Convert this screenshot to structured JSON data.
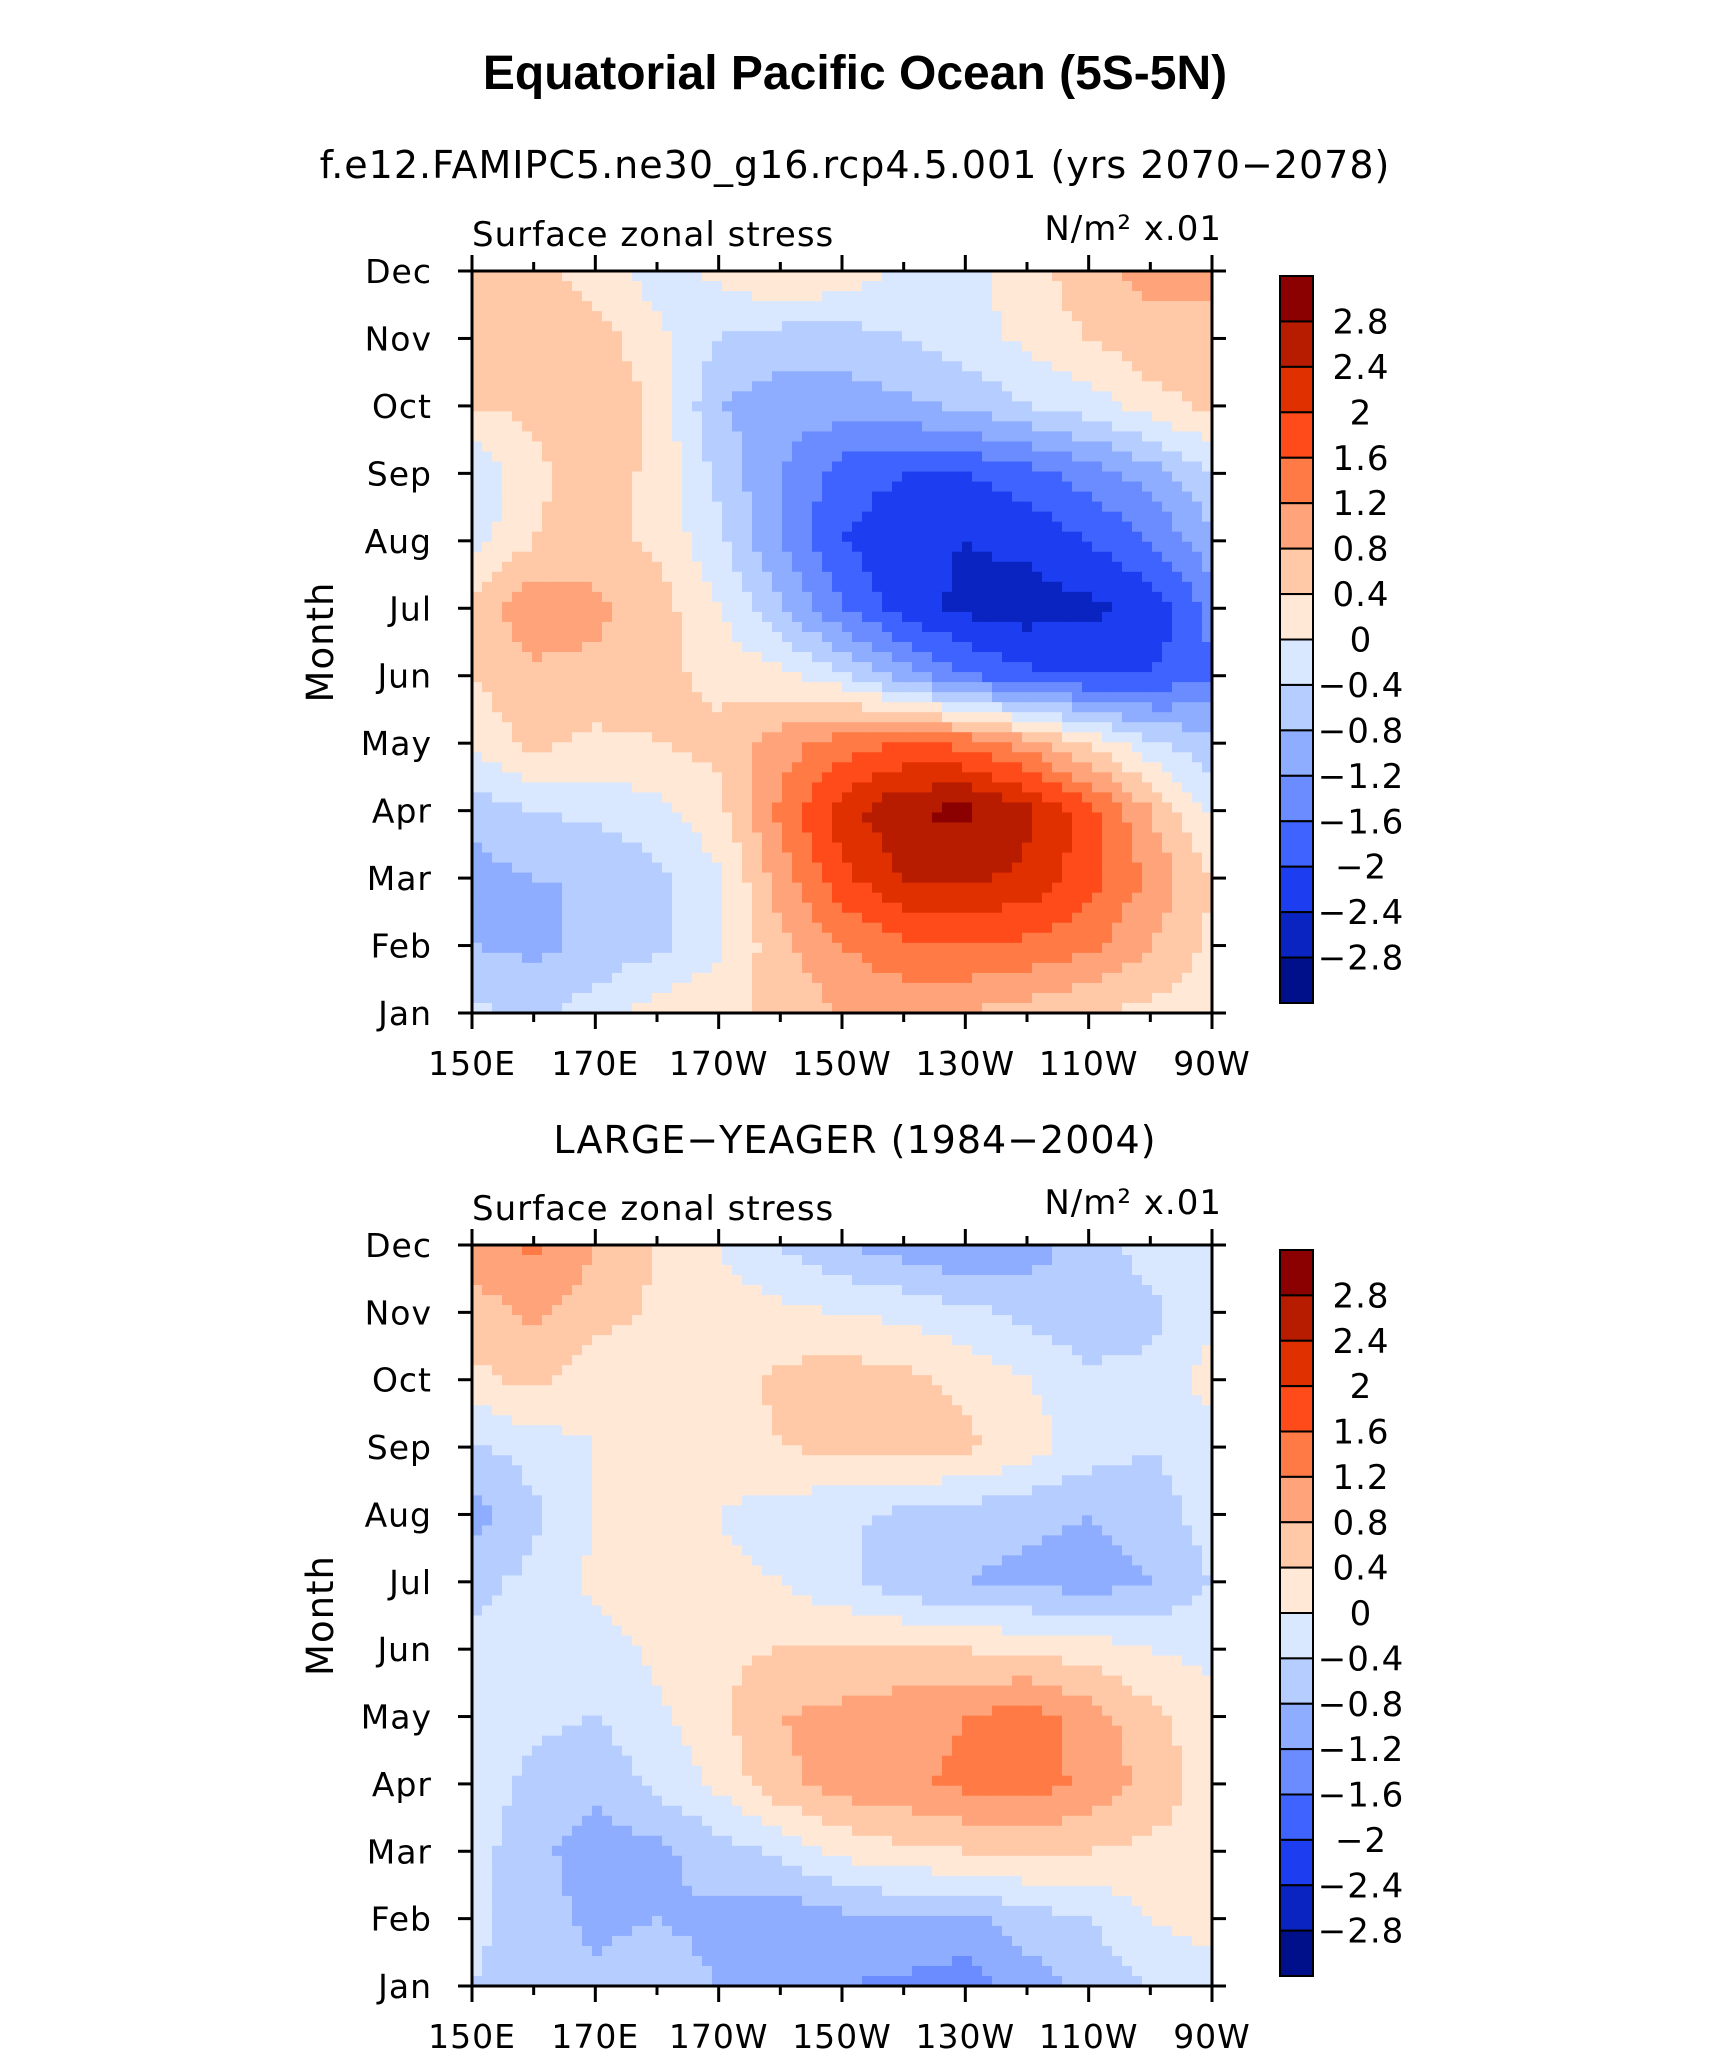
{
  "figure": {
    "title": "Equatorial Pacific Ocean (5S-5N)"
  },
  "colorbar": {
    "labels": [
      "2.8",
      "2.4",
      "2",
      "1.6",
      "1.2",
      "0.8",
      "0.4",
      "0",
      "−0.4",
      "−0.8",
      "−1.2",
      "−1.6",
      "−2",
      "−2.4",
      "−2.8"
    ],
    "colors": [
      "#8b0000",
      "#b81c00",
      "#e03000",
      "#ff4a1a",
      "#ff7a45",
      "#ffa47a",
      "#ffc9a8",
      "#ffe8d6",
      "#d9e8ff",
      "#b5cdff",
      "#8eadff",
      "#6b8cff",
      "#3f63ff",
      "#1c3df0",
      "#0a24c2",
      "#00108a"
    ]
  },
  "chart_data": [
    {
      "type": "heatmap",
      "title": "f.e12.FAMIPC5.ne30_g16.rcp4.5.001 (yrs 2070−2078)",
      "left_string": "Surface zonal stress",
      "right_string": "N/m² x.01",
      "ylabel": "Month",
      "x_ticks": [
        "150E",
        "170E",
        "170W",
        "150W",
        "130W",
        "110W",
        "90W"
      ],
      "y_ticks": [
        "Jan",
        "Feb",
        "Mar",
        "Apr",
        "May",
        "Jun",
        "Jul",
        "Aug",
        "Sep",
        "Oct",
        "Nov",
        "Dec"
      ],
      "xlim": [
        150,
        270
      ],
      "ylim": [
        1,
        12
      ],
      "x": [
        150,
        160,
        170,
        180,
        190,
        200,
        210,
        220,
        230,
        240,
        250,
        260,
        270
      ],
      "values": [
        [
          -0.3,
          -0.5,
          -0.2,
          0.2,
          0.3,
          0.5,
          0.8,
          0.9,
          0.8,
          0.6,
          0.4,
          0.3,
          0.2
        ],
        [
          -0.8,
          -0.9,
          -0.7,
          -0.5,
          -0.1,
          0.7,
          1.2,
          1.5,
          1.6,
          1.5,
          1.3,
          0.8,
          0.3
        ],
        [
          -1.0,
          -0.8,
          -0.8,
          -0.5,
          -0.1,
          1.0,
          1.9,
          2.4,
          2.5,
          2.3,
          1.8,
          1.1,
          0.4
        ],
        [
          -0.6,
          -0.4,
          -0.3,
          -0.1,
          0.3,
          1.3,
          2.2,
          2.8,
          2.9,
          2.5,
          1.8,
          0.8,
          -0.1
        ],
        [
          0.1,
          0.5,
          0.3,
          0.4,
          0.5,
          1.0,
          1.4,
          1.6,
          1.5,
          1.0,
          0.3,
          -0.3,
          -0.7
        ],
        [
          0.4,
          0.7,
          0.7,
          0.5,
          0.3,
          0.1,
          -0.3,
          -1.0,
          -1.6,
          -1.9,
          -2.0,
          -2.0,
          -1.6
        ],
        [
          0.6,
          1.1,
          0.9,
          0.6,
          0.0,
          -0.7,
          -1.6,
          -2.2,
          -2.5,
          -2.6,
          -2.5,
          -2.3,
          -1.5
        ],
        [
          -0.2,
          0.4,
          0.6,
          0.3,
          -0.3,
          -1.2,
          -2.0,
          -2.3,
          -2.4,
          -2.3,
          -2.0,
          -1.6,
          -0.9
        ],
        [
          -0.4,
          0.3,
          0.6,
          0.3,
          -0.5,
          -1.2,
          -1.8,
          -2.0,
          -2.0,
          -1.8,
          -1.4,
          -1.0,
          -0.4
        ],
        [
          0.4,
          0.5,
          0.8,
          0.3,
          -0.8,
          -1.0,
          -1.0,
          -0.9,
          -0.7,
          -0.4,
          -0.2,
          0.2,
          0.5
        ],
        [
          0.5,
          0.7,
          0.6,
          0.1,
          -0.4,
          -0.6,
          -0.6,
          -0.4,
          -0.2,
          0.1,
          0.4,
          0.7,
          0.8
        ],
        [
          0.4,
          0.5,
          0.2,
          -0.2,
          0.1,
          0.5,
          0.3,
          -0.1,
          -0.1,
          0.2,
          0.7,
          0.9,
          0.8
        ]
      ]
    },
    {
      "type": "heatmap",
      "title": "LARGE−YEAGER (1984−2004)",
      "left_string": "Surface zonal stress",
      "right_string": "N/m² x.01",
      "ylabel": "Month",
      "x_ticks": [
        "150E",
        "170E",
        "170W",
        "150W",
        "130W",
        "110W",
        "90W"
      ],
      "y_ticks": [
        "Jan",
        "Feb",
        "Mar",
        "Apr",
        "May",
        "Jun",
        "Jul",
        "Aug",
        "Sep",
        "Oct",
        "Nov",
        "Dec"
      ],
      "xlim": [
        150,
        270
      ],
      "ylim": [
        1,
        12
      ],
      "x": [
        150,
        160,
        170,
        180,
        190,
        200,
        210,
        220,
        230,
        240,
        250,
        260,
        270
      ],
      "values": [
        [
          -0.4,
          -0.6,
          -0.7,
          -0.6,
          -0.8,
          -1.1,
          -1.2,
          -1.3,
          -1.4,
          -1.0,
          -0.7,
          -0.4,
          -0.2
        ],
        [
          -0.3,
          -0.6,
          -0.9,
          -0.8,
          -0.9,
          -1.1,
          -0.9,
          -0.8,
          -0.9,
          -0.6,
          -0.4,
          0.0,
          0.2
        ],
        [
          -0.2,
          -0.7,
          -1.0,
          -0.9,
          -0.6,
          -0.3,
          0.1,
          0.3,
          0.4,
          0.5,
          0.4,
          0.3,
          0.2
        ],
        [
          -0.2,
          -0.5,
          -0.7,
          -0.3,
          0.1,
          0.7,
          1.0,
          1.1,
          1.3,
          1.4,
          1.1,
          0.7,
          0.2
        ],
        [
          -0.1,
          -0.3,
          -0.4,
          -0.1,
          0.3,
          0.8,
          0.9,
          1.0,
          1.2,
          1.4,
          1.0,
          0.5,
          0.1
        ],
        [
          -0.3,
          -0.4,
          -0.2,
          0.1,
          0.3,
          0.4,
          0.5,
          0.5,
          0.4,
          0.3,
          0.2,
          0.0,
          -0.1
        ],
        [
          -0.5,
          -0.3,
          0.1,
          0.2,
          0.1,
          0.0,
          -0.3,
          -0.7,
          -0.8,
          -0.9,
          -1.0,
          -0.8,
          -0.4
        ],
        [
          -1.0,
          -0.5,
          0.0,
          0.1,
          0.0,
          -0.2,
          -0.3,
          -0.5,
          -0.6,
          -0.7,
          -0.8,
          -0.6,
          -0.2
        ],
        [
          -0.5,
          -0.2,
          0.0,
          0.1,
          0.2,
          0.4,
          0.5,
          0.6,
          0.5,
          0.2,
          -0.2,
          -0.4,
          -0.2
        ],
        [
          0.3,
          0.5,
          0.1,
          0.1,
          0.2,
          0.5,
          0.6,
          0.5,
          0.3,
          0.0,
          -0.3,
          -0.3,
          0.2
        ],
        [
          0.6,
          0.9,
          0.6,
          0.3,
          0.2,
          0.1,
          0.0,
          -0.1,
          -0.3,
          -0.5,
          -0.7,
          -0.5,
          -0.1
        ],
        [
          1.0,
          1.3,
          0.8,
          0.4,
          0.0,
          -0.4,
          -0.8,
          -1.0,
          -1.2,
          -1.0,
          -0.6,
          -0.2,
          0.0
        ]
      ]
    }
  ]
}
